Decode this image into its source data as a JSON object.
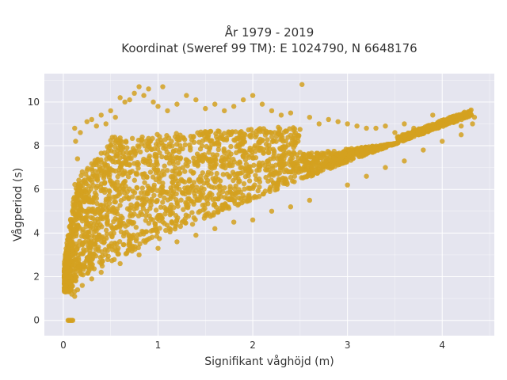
{
  "chart_data": {
    "type": "scatter",
    "title_lines": [
      "År 1979 - 2019",
      "Koordinat (Sweref 99 TM): E 1024790, N 6648176"
    ],
    "xlabel": "Signifikant våghöjd (m)",
    "ylabel": "Vågperiod (s)",
    "xlim": [
      -0.2,
      4.55
    ],
    "ylim": [
      -0.7,
      11.3
    ],
    "xticks": [
      0,
      1,
      2,
      3,
      4
    ],
    "yticks": [
      0,
      2,
      4,
      6,
      8,
      10
    ],
    "grid": true,
    "legend": "none",
    "colors": {
      "marker": "#d4a120",
      "plot_bg": "#e5e5ef",
      "grid": "#ffffff"
    },
    "series": [
      {
        "values": [
          [
            0.05,
            0.0
          ],
          [
            0.06,
            0.0
          ],
          [
            0.07,
            0.0
          ],
          [
            0.08,
            0.0
          ],
          [
            0.09,
            0.0
          ],
          [
            0.1,
            0.0
          ],
          [
            0.02,
            1.8
          ],
          [
            0.04,
            2.2
          ],
          [
            0.06,
            2.6
          ],
          [
            0.08,
            1.4
          ],
          [
            0.09,
            1.2
          ],
          [
            0.1,
            3.0
          ],
          [
            0.12,
            8.8
          ],
          [
            0.13,
            8.2
          ],
          [
            0.15,
            7.4
          ],
          [
            0.18,
            8.6
          ],
          [
            0.2,
            6.8
          ],
          [
            0.22,
            5.6
          ],
          [
            0.25,
            9.1
          ],
          [
            0.3,
            9.2
          ],
          [
            0.35,
            8.9
          ],
          [
            0.4,
            9.4
          ],
          [
            0.45,
            9.0
          ],
          [
            0.5,
            9.6
          ],
          [
            0.55,
            9.3
          ],
          [
            0.6,
            10.2
          ],
          [
            0.65,
            10.0
          ],
          [
            0.7,
            10.1
          ],
          [
            0.75,
            10.4
          ],
          [
            0.8,
            10.7
          ],
          [
            0.85,
            10.3
          ],
          [
            0.9,
            10.6
          ],
          [
            0.95,
            10.0
          ],
          [
            1.0,
            9.8
          ],
          [
            1.05,
            10.7
          ],
          [
            1.1,
            9.6
          ],
          [
            1.2,
            9.9
          ],
          [
            1.3,
            10.3
          ],
          [
            1.4,
            10.1
          ],
          [
            1.5,
            9.7
          ],
          [
            1.6,
            9.9
          ],
          [
            1.7,
            9.6
          ],
          [
            1.8,
            9.8
          ],
          [
            1.9,
            10.1
          ],
          [
            2.0,
            10.3
          ],
          [
            2.1,
            9.9
          ],
          [
            2.2,
            9.6
          ],
          [
            2.3,
            9.4
          ],
          [
            2.4,
            9.5
          ],
          [
            2.52,
            10.8
          ],
          [
            2.6,
            9.3
          ],
          [
            2.7,
            9.0
          ],
          [
            2.8,
            9.2
          ],
          [
            2.9,
            9.1
          ],
          [
            3.0,
            9.0
          ],
          [
            3.1,
            8.9
          ],
          [
            3.2,
            8.8
          ],
          [
            3.3,
            8.8
          ],
          [
            3.4,
            8.9
          ],
          [
            3.5,
            8.6
          ],
          [
            3.6,
            9.0
          ],
          [
            3.7,
            8.8
          ],
          [
            3.8,
            8.7
          ],
          [
            3.9,
            9.4
          ],
          [
            4.0,
            9.0
          ],
          [
            4.1,
            9.1
          ],
          [
            4.2,
            8.9
          ],
          [
            4.34,
            9.3
          ],
          [
            4.32,
            9.0
          ],
          [
            3.0,
            6.2
          ],
          [
            3.2,
            6.6
          ],
          [
            3.4,
            7.0
          ],
          [
            3.6,
            7.3
          ],
          [
            3.8,
            7.8
          ],
          [
            4.0,
            8.2
          ],
          [
            4.2,
            8.5
          ],
          [
            2.6,
            5.5
          ],
          [
            2.4,
            5.2
          ],
          [
            2.2,
            5.0
          ],
          [
            2.0,
            4.6
          ],
          [
            1.8,
            4.5
          ],
          [
            1.6,
            4.2
          ],
          [
            1.4,
            3.9
          ],
          [
            1.2,
            3.6
          ],
          [
            1.0,
            3.3
          ],
          [
            0.8,
            3.0
          ],
          [
            0.6,
            2.6
          ],
          [
            0.4,
            2.2
          ],
          [
            0.3,
            1.9
          ],
          [
            0.2,
            1.6
          ],
          [
            0.15,
            1.4
          ],
          [
            0.12,
            1.1
          ]
        ]
      }
    ]
  }
}
